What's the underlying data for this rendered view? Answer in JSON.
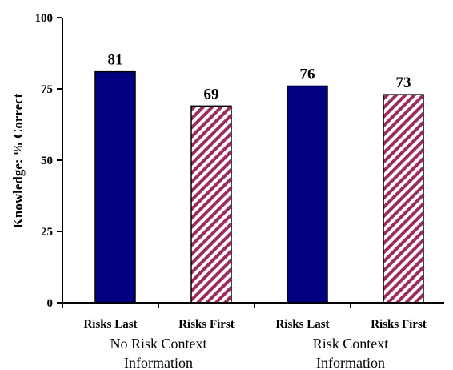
{
  "chart_data": {
    "type": "bar",
    "title": "",
    "xlabel": "",
    "ylabel": "Knowledge: % Correct",
    "ylim": [
      0,
      100
    ],
    "yticks": [
      0,
      25,
      50,
      75,
      100
    ],
    "grid": false,
    "categories": [
      "Risks Last",
      "Risks First",
      "Risks Last",
      "Risks First"
    ],
    "groups": [
      {
        "label_lines": [
          "No Risk Context",
          "Information"
        ],
        "span": [
          0,
          1
        ]
      },
      {
        "label_lines": [
          "Risk Context",
          "Information"
        ],
        "span": [
          2,
          3
        ]
      }
    ],
    "values": [
      81,
      69,
      76,
      73
    ],
    "bar_styles": [
      "solid",
      "hatched",
      "solid",
      "hatched"
    ],
    "colors": {
      "solid_fill": "#000080",
      "hatch_color": "#9b2c5e",
      "hatch_background": "#ffffff",
      "axis": "#000000"
    }
  }
}
